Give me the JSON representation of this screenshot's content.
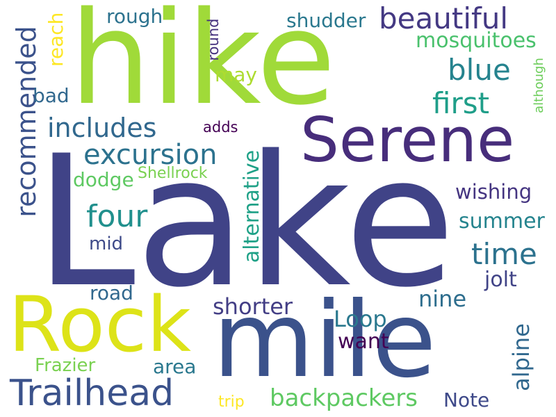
{
  "words": {
    "lake": {
      "text": "Lake",
      "color": "#404387"
    },
    "hike": {
      "text": "hike",
      "color": "#a0da39"
    },
    "mile": {
      "text": "mile",
      "color": "#3b528b"
    },
    "rock": {
      "text": "Rock",
      "color": "#dde318"
    },
    "serene": {
      "text": "Serene",
      "color": "#472d7b"
    },
    "trailhead": {
      "text": "Trailhead",
      "color": "#3b528b"
    },
    "excursion": {
      "text": "excursion",
      "color": "#2c728e"
    },
    "includes": {
      "text": "includes",
      "color": "#31688e"
    },
    "recommended": {
      "text": "recommended",
      "color": "#3b528b"
    },
    "beautiful": {
      "text": "beautiful",
      "color": "#443983"
    },
    "four": {
      "text": "four",
      "color": "#21908d"
    },
    "first": {
      "text": "first",
      "color": "#1f9e89"
    },
    "blue": {
      "text": "blue",
      "color": "#25838e"
    },
    "time": {
      "text": "time",
      "color": "#2c728e"
    },
    "alternative": {
      "text": "alternative",
      "color": "#1fa187"
    },
    "alpine": {
      "text": "alpine",
      "color": "#31688e"
    },
    "backpackers": {
      "text": "backpackers",
      "color": "#5ec962"
    },
    "mosquitoes": {
      "text": "mosquitoes",
      "color": "#4ac16d"
    },
    "shudder": {
      "text": "shudder",
      "color": "#2a788e"
    },
    "rough": {
      "text": "rough",
      "color": "#2c728e"
    },
    "shorter": {
      "text": "shorter",
      "color": "#433e85"
    },
    "loop": {
      "text": "Loop",
      "color": "#2a788e"
    },
    "wishing": {
      "text": "wishing",
      "color": "#453581"
    },
    "summer": {
      "text": "summer",
      "color": "#25848e"
    },
    "jolt": {
      "text": "jolt",
      "color": "#414487"
    },
    "nine": {
      "text": "nine",
      "color": "#2e6e8e"
    },
    "note": {
      "text": "Note",
      "color": "#3e4989"
    },
    "want": {
      "text": "want",
      "color": "#440154"
    },
    "area": {
      "text": "area",
      "color": "#2a788e"
    },
    "frazier": {
      "text": "Frazier",
      "color": "#7ad151"
    },
    "road": {
      "text": "road",
      "color": "#31688e"
    },
    "mid": {
      "text": "mid",
      "color": "#3e4a89"
    },
    "dodge": {
      "text": "dodge",
      "color": "#5ec962"
    },
    "shellrock": {
      "text": "Shellrock",
      "color": "#7ad151"
    },
    "bad": {
      "text": "bad",
      "color": "#31688e"
    },
    "may": {
      "text": "may",
      "color": "#addc30"
    },
    "adds": {
      "text": "adds",
      "color": "#440154"
    },
    "reach": {
      "text": "reach",
      "color": "#fde725"
    },
    "round": {
      "text": "round",
      "color": "#46327e"
    },
    "although": {
      "text": "although",
      "color": "#6ccd5a"
    },
    "trip": {
      "text": "trip",
      "color": "#fde725"
    }
  }
}
